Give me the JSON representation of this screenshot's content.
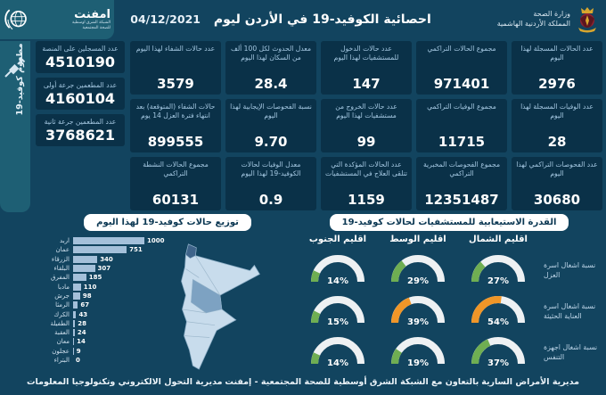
{
  "header": {
    "ministry_line1": "وزارة الصحة",
    "ministry_line2": "المملكة الأردنية الهاشمية",
    "title": "احصائية الكوفيد-19 في الأردن ليوم",
    "date": "04/12/2021",
    "emphnet_name": "امفنت",
    "emphnet_sub1": "الشبكة الشرق اوسطية",
    "emphnet_sub2": "للصحة المجتمعية"
  },
  "sidebar": {
    "vertical_label": "مطعوم كوفيد-19"
  },
  "vaccination_cards": [
    {
      "title": "عدد المسجلين على المنصة",
      "value": "4510190"
    },
    {
      "title": "عدد المطعمين جرعة أولى",
      "value": "4160104"
    },
    {
      "title": "عدد المطعمين جرعة ثانية",
      "value": "3768621"
    }
  ],
  "stat_cards": [
    {
      "title": "عدد الحالات المسجلة لهذا اليوم",
      "value": "2976"
    },
    {
      "title": "عدد الوفيات المسجلة لهذا اليوم",
      "value": "28"
    },
    {
      "title": "عدد الفحوصات التراكمي لهذا اليوم",
      "value": "30680"
    },
    {
      "title": "مجموع الحالات التراكمي",
      "value": "971401"
    },
    {
      "title": "مجموع الوفيات التراكمي",
      "value": "11715"
    },
    {
      "title": "مجموع الفحوصات المخبرية التراكمي",
      "value": "12351487"
    },
    {
      "title": "عدد حالات الدخول للمستشفيات لهذا اليوم",
      "value": "147"
    },
    {
      "title": "عدد حالات الخروج من مستشفيات لهذا اليوم",
      "value": "99"
    },
    {
      "title": "عدد الحالات المؤكدة التي تتلقى العلاج في المستشفيات",
      "value": "1159"
    },
    {
      "title": "معدل الحدوث لكل 100 ألف من السكان لهذا اليوم",
      "value": "28.4"
    },
    {
      "title": "نسبة الفحوصات الإيجابية لهذا اليوم",
      "value": "9.70"
    },
    {
      "title": "معدل الوفيات لحالات الكوفيد-19 لهذا اليوم",
      "value": "0.9"
    },
    {
      "title": "عدد حالات الشفاء لهذا اليوم",
      "value": "3579"
    },
    {
      "title": "حالات الشفاء (المتوقعة) بعد انتهاء فترة العزل 14 يوم",
      "value": "899555"
    },
    {
      "title": "مجموع الحالات النشطة التراكمي",
      "value": "60131"
    }
  ],
  "chart_data": [
    {
      "type": "bar",
      "orientation": "horizontal",
      "title": "توزيع حالات كوفيد-19 لهذا اليوم",
      "categories": [
        "اربد",
        "عمان",
        "الزرقاء",
        "البلقاء",
        "المفرق",
        "مادبا",
        "جرش",
        "الرمثا",
        "الكرك",
        "الطفيلة",
        "العقبة",
        "معان",
        "عجلون",
        "البتراء"
      ],
      "values": [
        1000,
        751,
        340,
        307,
        185,
        110,
        98,
        67,
        43,
        28,
        24,
        14,
        9,
        0
      ],
      "xlim": [
        0,
        1000
      ]
    },
    {
      "type": "gauge-grid",
      "title": "القدرة الاستيعابية للمستشفيات لحالات كوفيد-19",
      "columns": [
        "اقليم الشمال",
        "اقليم الوسط",
        "اقليم الجنوب"
      ],
      "rows": [
        {
          "label": "نسبة اشغال اسرة العزل",
          "values": [
            27,
            29,
            14
          ],
          "colors": [
            "green",
            "green",
            "green"
          ]
        },
        {
          "label": "نسبة اشغال اسرة العناية الحثيثة",
          "values": [
            54,
            39,
            15
          ],
          "colors": [
            "orange",
            "orange",
            "green"
          ]
        },
        {
          "label": "نسبة اشغال اجهزة التنفس",
          "values": [
            37,
            19,
            14
          ],
          "colors": [
            "green",
            "green",
            "green"
          ]
        }
      ]
    }
  ],
  "footer": {
    "right": "مديرية الأمراض السارية",
    "center": "بالتعاون مع الشبكة الشرق أوسطية للصحة المجتمعية - إمفنت",
    "left": "مديرية التحول الالكتروني وتكنولوجيا المعلومات"
  },
  "colors": {
    "green": "#6fae52",
    "orange": "#f09628",
    "bar": "#a4c0da",
    "accent_teal": "#1e5f74",
    "gauge_track": "#eef1f3"
  }
}
